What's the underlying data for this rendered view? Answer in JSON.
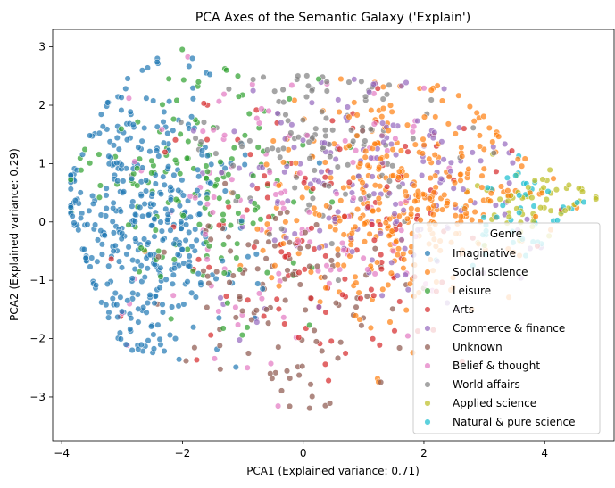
{
  "chart_data": {
    "type": "scatter",
    "title": "PCA Axes of the Semantic Galaxy ('Explain')",
    "xlabel": "PCA1 (Explained variance: 0.71)",
    "ylabel": "PCA2 (Explained variance: 0.29)",
    "xlim": [
      -4.15,
      5.15
    ],
    "ylim": [
      -3.75,
      3.3
    ],
    "xticks": [
      -4,
      -2,
      0,
      2,
      4
    ],
    "yticks": [
      -3,
      -2,
      -1,
      0,
      1,
      2,
      3
    ],
    "xtick_labels": [
      "−4",
      "−2",
      "0",
      "2",
      "4"
    ],
    "ytick_labels": [
      "−3",
      "−2",
      "−1",
      "0",
      "1",
      "2",
      "3"
    ],
    "grid": false,
    "legend": {
      "title": "Genre",
      "placement": "lower right"
    },
    "series": [
      {
        "name": "Imaginative",
        "color": "#1f77b4"
      },
      {
        "name": "Social science",
        "color": "#ff7f0e"
      },
      {
        "name": "Leisure",
        "color": "#2ca02c"
      },
      {
        "name": "Arts",
        "color": "#d62728"
      },
      {
        "name": "Commerce & finance",
        "color": "#9467bd"
      },
      {
        "name": "Unknown",
        "color": "#8c564b"
      },
      {
        "name": "Belief & thought",
        "color": "#e377c2"
      },
      {
        "name": "World affairs",
        "color": "#7f7f7f"
      },
      {
        "name": "Applied science",
        "color": "#bcbd22"
      },
      {
        "name": "Natural & pure science",
        "color": "#17becf"
      }
    ]
  }
}
